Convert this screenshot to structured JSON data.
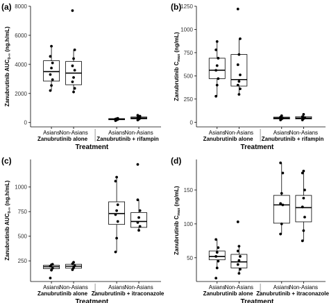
{
  "chart_data": [
    {
      "panel_label": "(a)",
      "type": "box",
      "ylabel": "Zanubrutinib AUC",
      "ylabel_sub": "0-∞",
      "ylabel_unit": "(ng.h/mL)",
      "xlabel": "Treatment",
      "groups": [
        "Zanubrutinib alone",
        "Zanubrutinib + rifampin"
      ],
      "ylim": [
        -300,
        8000
      ],
      "yticks": [
        0,
        2000,
        4000,
        6000,
        8000
      ],
      "yticklabels": [
        "0",
        "2000",
        "4000",
        "6000",
        "8000"
      ],
      "boxes": [
        {
          "label": "Asians",
          "group": 0,
          "whisker_low": 2200,
          "q1": 2850,
          "median": 3500,
          "q3": 4250,
          "whisker_high": 5250,
          "points": [
            2200,
            2550,
            2950,
            3300,
            3750,
            4100,
            4550,
            5250
          ]
        },
        {
          "label": "Non-Asians",
          "group": 0,
          "whisker_low": 2100,
          "q1": 2600,
          "median": 3400,
          "q3": 4200,
          "whisker_high": 5000,
          "points": [
            7700,
            2100,
            2350,
            2800,
            3100,
            3600,
            3900,
            4400,
            5000
          ]
        },
        {
          "label": "Asians",
          "group": 1,
          "whisker_low": 130,
          "q1": 190,
          "median": 230,
          "q3": 270,
          "whisker_high": 300,
          "points": [
            130,
            180,
            210,
            240,
            260,
            290
          ]
        },
        {
          "label": "Non-Asians",
          "group": 1,
          "whisker_low": 170,
          "q1": 250,
          "median": 310,
          "q3": 380,
          "whisker_high": 500,
          "points": [
            170,
            230,
            290,
            330,
            370,
            440,
            500
          ]
        }
      ]
    },
    {
      "panel_label": "(b)",
      "type": "box",
      "ylabel": "Zanubrutinib C",
      "ylabel_sub": "max",
      "ylabel_unit": "(ng/mL)",
      "xlabel": "Treatment",
      "groups": [
        "Zanubrutinib alone",
        "Zanubrutinib + rifampin"
      ],
      "ylim": [
        -50,
        1250
      ],
      "yticks": [
        0,
        250,
        500,
        750,
        1000,
        1250
      ],
      "yticklabels": [
        "0",
        "250",
        "500",
        "750",
        "1000",
        "1250"
      ],
      "boxes": [
        {
          "label": "Asians",
          "group": 0,
          "whisker_low": 280,
          "q1": 470,
          "median": 560,
          "q3": 690,
          "whisker_high": 870,
          "points": [
            280,
            400,
            470,
            560,
            610,
            690,
            780,
            870
          ]
        },
        {
          "label": "Non-Asians",
          "group": 0,
          "whisker_low": 300,
          "q1": 390,
          "median": 460,
          "q3": 730,
          "whisker_high": 900,
          "points": [
            1220,
            300,
            360,
            400,
            440,
            510,
            620,
            730,
            900
          ]
        },
        {
          "label": "Asians",
          "group": 1,
          "whisker_low": 25,
          "q1": 35,
          "median": 45,
          "q3": 55,
          "whisker_high": 70,
          "points": [
            25,
            35,
            45,
            55,
            70
          ]
        },
        {
          "label": "Non-Asians",
          "group": 1,
          "whisker_low": 25,
          "q1": 35,
          "median": 45,
          "q3": 60,
          "whisker_high": 85,
          "points": [
            25,
            40,
            50,
            60,
            85
          ]
        }
      ]
    },
    {
      "panel_label": "(c)",
      "type": "box",
      "ylabel": "Zanubrutinib AUC",
      "ylabel_sub": "0-∞",
      "ylabel_unit": "(ng.h/mL)",
      "xlabel": "Treatment",
      "groups": [
        "Zanubrutinib alone",
        "Zanubrutinib + itraconazole"
      ],
      "ylim": [
        40,
        1280
      ],
      "yticks": [
        250,
        500,
        750,
        1000
      ],
      "yticklabels": [
        "250",
        "500",
        "750",
        "1000"
      ],
      "boxes": [
        {
          "label": "Asians",
          "group": 0,
          "whisker_low": 155,
          "q1": 170,
          "median": 190,
          "q3": 205,
          "whisker_high": 215,
          "points": [
            75,
            155,
            175,
            195,
            210,
            215
          ]
        },
        {
          "label": "Non-Asians",
          "group": 0,
          "whisker_low": 160,
          "q1": 175,
          "median": 195,
          "q3": 215,
          "whisker_high": 235,
          "points": [
            160,
            180,
            200,
            220,
            235
          ]
        },
        {
          "label": "Asians",
          "group": 1,
          "whisker_low": 340,
          "q1": 620,
          "median": 730,
          "q3": 850,
          "whisker_high": 1100,
          "points": [
            340,
            480,
            650,
            720,
            760,
            820,
            1060,
            1100
          ]
        },
        {
          "label": "Non-Asians",
          "group": 1,
          "whisker_low": 560,
          "q1": 590,
          "median": 650,
          "q3": 740,
          "whisker_high": 870,
          "points": [
            1230,
            560,
            600,
            640,
            690,
            760,
            870
          ]
        }
      ]
    },
    {
      "panel_label": "(d)",
      "type": "box",
      "ylabel": "Zanubrutinib C",
      "ylabel_sub": "max",
      "ylabel_unit": "(ng/mL)",
      "xlabel": "Treatment",
      "groups": [
        "Zanubrutinib alone",
        "Zanubrutinib + itraconazole"
      ],
      "ylim": [
        15,
        195
      ],
      "yticks": [
        50,
        100,
        150
      ],
      "yticklabels": [
        "50",
        "100",
        "150"
      ],
      "boxes": [
        {
          "label": "Asians",
          "group": 0,
          "whisker_low": 35,
          "q1": 47,
          "median": 52,
          "q3": 60,
          "whisker_high": 77,
          "points": [
            20,
            35,
            45,
            52,
            58,
            65,
            77
          ]
        },
        {
          "label": "Non-Asians",
          "group": 0,
          "whisker_low": 27,
          "q1": 35,
          "median": 44,
          "q3": 55,
          "whisker_high": 67,
          "points": [
            103,
            27,
            33,
            40,
            46,
            52,
            60,
            67
          ]
        },
        {
          "label": "Asians",
          "group": 1,
          "whisker_low": 85,
          "q1": 101,
          "median": 128,
          "q3": 142,
          "whisker_high": 190,
          "points": [
            85,
            100,
            128,
            130,
            145,
            175,
            190
          ]
        },
        {
          "label": "Non-Asians",
          "group": 1,
          "whisker_low": 75,
          "q1": 103,
          "median": 124,
          "q3": 142,
          "whisker_high": 178,
          "points": [
            75,
            90,
            110,
            125,
            138,
            150,
            175,
            178
          ]
        }
      ]
    }
  ]
}
